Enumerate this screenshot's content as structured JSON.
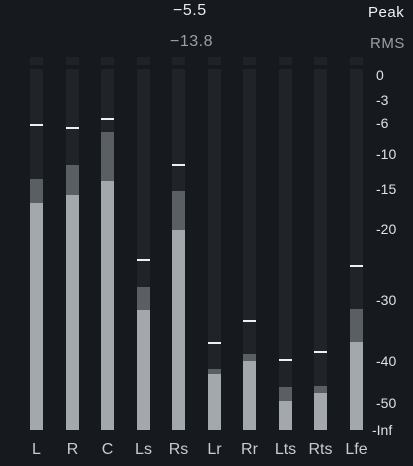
{
  "header": {
    "peak_value": "−5.5",
    "rms_value": "−13.8",
    "peak_label": "Peak",
    "rms_label": "RMS"
  },
  "scale": [
    "0",
    "-3",
    "-6",
    "-10",
    "-15",
    "-20",
    "-30",
    "-40",
    "-50",
    "-Inf"
  ],
  "channels": [
    {
      "label": "L",
      "peak": -6.2,
      "rms_hi": -13.5,
      "rms_lo": -16.8
    },
    {
      "label": "R",
      "peak": -6.6,
      "rms_hi": -11.5,
      "rms_lo": -15.8
    },
    {
      "label": "C",
      "peak": -5.5,
      "rms_hi": -7.2,
      "rms_lo": -13.8
    },
    {
      "label": "Ls",
      "peak": -24.4,
      "rms_hi": -28.2,
      "rms_lo": -31.6
    },
    {
      "label": "Rs",
      "peak": -11.6,
      "rms_hi": -15.3,
      "rms_lo": -20.2
    },
    {
      "label": "Lr",
      "peak": -37.0,
      "rms_hi": -41.8,
      "rms_lo": -43.0
    },
    {
      "label": "Rr",
      "peak": -33.5,
      "rms_hi": -38.8,
      "rms_lo": -40.1
    },
    {
      "label": "Lts",
      "peak": -39.9,
      "rms_hi": -46.2,
      "rms_lo": -49.5
    },
    {
      "label": "Rts",
      "peak": -38.5,
      "rms_hi": -46.0,
      "rms_lo": -47.5
    },
    {
      "label": "Lfe",
      "peak": -25.2,
      "rms_hi": -31.4,
      "rms_lo": -36.9
    }
  ]
}
